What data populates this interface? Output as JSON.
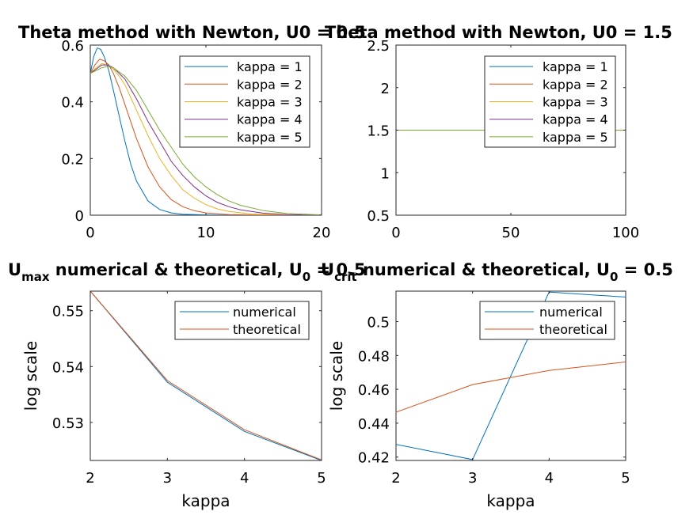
{
  "chart_data": [
    {
      "id": "p1",
      "type": "line",
      "title": "Theta method with Newton, U0 = 0.5",
      "xlim": [
        0,
        20
      ],
      "ylim": [
        0,
        0.6
      ],
      "xticks": [
        "0",
        "10",
        "20"
      ],
      "xtick_values": [
        0,
        10,
        20
      ],
      "yticks": [
        "0",
        "0.2",
        "0.4",
        "0.6"
      ],
      "ytick_values": [
        0,
        0.2,
        0.4,
        0.6
      ],
      "xlabel": "",
      "ylabel": "",
      "legend": "top-right",
      "series": [
        {
          "name": "kappa = 1",
          "color": "#0072BD",
          "x": [
            0,
            0.3,
            0.6,
            0.9,
            1.2,
            1.6,
            2,
            2.5,
            3,
            3.5,
            4,
            5,
            6,
            7,
            8,
            10,
            12,
            15,
            20
          ],
          "y": [
            0.5,
            0.56,
            0.59,
            0.585,
            0.56,
            0.51,
            0.44,
            0.35,
            0.26,
            0.18,
            0.12,
            0.05,
            0.02,
            0.008,
            0.003,
            0.001,
            0,
            0,
            0
          ]
        },
        {
          "name": "kappa = 2",
          "color": "#D95319",
          "x": [
            0,
            0.4,
            0.8,
            1.2,
            1.6,
            2,
            2.5,
            3,
            3.5,
            4,
            5,
            6,
            7,
            8,
            9,
            10,
            12,
            15,
            20
          ],
          "y": [
            0.5,
            0.53,
            0.55,
            0.545,
            0.53,
            0.5,
            0.45,
            0.39,
            0.33,
            0.27,
            0.17,
            0.1,
            0.055,
            0.03,
            0.016,
            0.008,
            0.002,
            0,
            0
          ]
        },
        {
          "name": "kappa = 3",
          "color": "#EDB120",
          "x": [
            0,
            0.5,
            1,
            1.5,
            2,
            2.5,
            3,
            4,
            5,
            6,
            7,
            8,
            9,
            10,
            11,
            12,
            14,
            17,
            20
          ],
          "y": [
            0.5,
            0.52,
            0.535,
            0.53,
            0.515,
            0.49,
            0.46,
            0.37,
            0.28,
            0.2,
            0.14,
            0.09,
            0.06,
            0.037,
            0.022,
            0.013,
            0.004,
            0.001,
            0
          ]
        },
        {
          "name": "kappa = 4",
          "color": "#7E2F8E",
          "x": [
            0,
            0.5,
            1,
            1.5,
            2,
            3,
            4,
            5,
            6,
            7,
            8,
            9,
            10,
            11,
            12,
            13,
            15,
            17,
            20
          ],
          "y": [
            0.5,
            0.515,
            0.53,
            0.53,
            0.52,
            0.48,
            0.41,
            0.33,
            0.26,
            0.19,
            0.14,
            0.1,
            0.068,
            0.045,
            0.03,
            0.019,
            0.007,
            0.002,
            0
          ]
        },
        {
          "name": "kappa = 5",
          "color": "#77AC30",
          "x": [
            0,
            0.5,
            1,
            1.5,
            2,
            3,
            4,
            5,
            6,
            7,
            8,
            9,
            10,
            11,
            12,
            13,
            15,
            17,
            20
          ],
          "y": [
            0.5,
            0.51,
            0.52,
            0.525,
            0.52,
            0.49,
            0.44,
            0.37,
            0.3,
            0.24,
            0.18,
            0.135,
            0.1,
            0.072,
            0.05,
            0.035,
            0.016,
            0.006,
            0.001
          ]
        }
      ]
    },
    {
      "id": "p2",
      "type": "line",
      "title": "Theta method with Newton, U0 = 1.5",
      "xlim": [
        0,
        100
      ],
      "ylim": [
        0.5,
        2.5
      ],
      "xticks": [
        "0",
        "50",
        "100"
      ],
      "xtick_values": [
        0,
        50,
        100
      ],
      "yticks": [
        "0.5",
        "1",
        "1.5",
        "2",
        "2.5"
      ],
      "ytick_values": [
        0.5,
        1,
        1.5,
        2,
        2.5
      ],
      "xlabel": "",
      "ylabel": "",
      "legend": "top-right",
      "series": [
        {
          "name": "kappa = 1",
          "color": "#0072BD",
          "x": [
            0,
            100
          ],
          "y": [
            1.5,
            1.5
          ]
        },
        {
          "name": "kappa = 2",
          "color": "#D95319",
          "x": [
            0,
            100
          ],
          "y": [
            1.5,
            1.5
          ]
        },
        {
          "name": "kappa = 3",
          "color": "#EDB120",
          "x": [
            0,
            100
          ],
          "y": [
            1.5,
            1.5
          ]
        },
        {
          "name": "kappa = 4",
          "color": "#7E2F8E",
          "x": [
            0,
            100
          ],
          "y": [
            1.5,
            1.5
          ]
        },
        {
          "name": "kappa = 5",
          "color": "#77AC30",
          "x": [
            0,
            100
          ],
          "y": [
            1.5,
            1.5
          ]
        }
      ]
    },
    {
      "id": "p3",
      "type": "line",
      "title_main": "U",
      "title_sub": "max",
      "title_rest": " numerical & theoretical, U",
      "title_sub2": "0",
      "title_end": " = 0.5",
      "xlim": [
        2,
        5
      ],
      "ylim": [
        0.5232,
        0.5535
      ],
      "xticks": [
        "2",
        "3",
        "4",
        "5"
      ],
      "xtick_values": [
        2,
        3,
        4,
        5
      ],
      "yticks": [
        "0.53",
        "0.54",
        "0.55"
      ],
      "ytick_values": [
        0.53,
        0.54,
        0.55
      ],
      "xlabel": "kappa",
      "ylabel": "log scale",
      "legend": "top-right",
      "series": [
        {
          "name": "numerical",
          "color": "#0072BD",
          "x": [
            2,
            3,
            4,
            5
          ],
          "y": [
            0.5535,
            0.5372,
            0.5284,
            0.5232
          ]
        },
        {
          "name": "theoretical",
          "color": "#D95319",
          "x": [
            2,
            3,
            4,
            5
          ],
          "y": [
            0.5535,
            0.5375,
            0.5287,
            0.5233
          ]
        }
      ]
    },
    {
      "id": "p4",
      "type": "line",
      "title_main": "U",
      "title_sub": "crit",
      "title_rest": " numerical & theoretical, U",
      "title_sub2": "0",
      "title_end": " = 0.5",
      "xlim": [
        2,
        5
      ],
      "ylim": [
        0.418,
        0.518
      ],
      "xticks": [
        "2",
        "3",
        "4",
        "5"
      ],
      "xtick_values": [
        2,
        3,
        4,
        5
      ],
      "yticks": [
        "0.42",
        "0.44",
        "0.46",
        "0.48",
        "0.5"
      ],
      "ytick_values": [
        0.42,
        0.44,
        0.46,
        0.48,
        0.5
      ],
      "xlabel": "kappa",
      "ylabel": "log scale",
      "legend": "top-right",
      "series": [
        {
          "name": "numerical",
          "color": "#0072BD",
          "x": [
            2,
            3,
            4,
            5
          ],
          "y": [
            0.4275,
            0.4185,
            0.5175,
            0.5145
          ]
        },
        {
          "name": "theoretical",
          "color": "#D95319",
          "x": [
            2,
            3,
            4,
            5
          ],
          "y": [
            0.4465,
            0.4628,
            0.4712,
            0.4762
          ]
        }
      ]
    }
  ]
}
